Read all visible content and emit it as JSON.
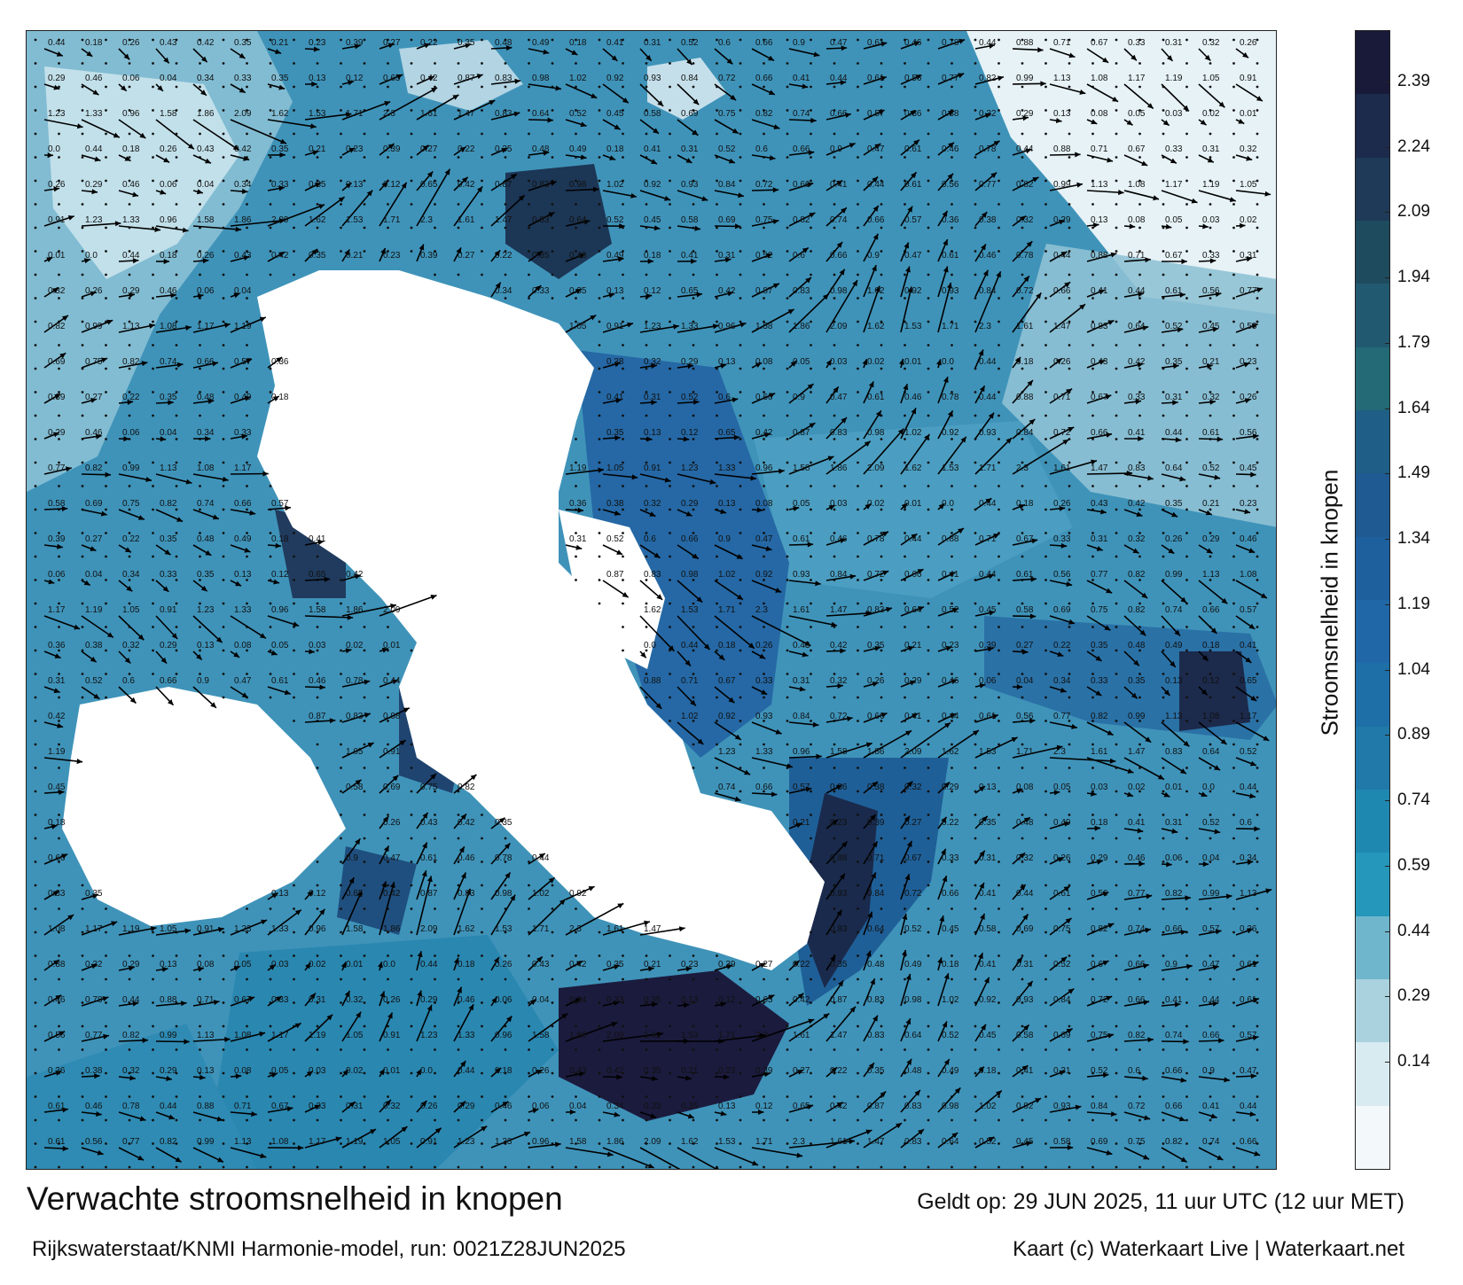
{
  "map": {
    "title": "Verwachte stroomsnelheid in knopen",
    "subtitle": "Rijkswaterstaat/KNMI Harmonie-model, run: 0021Z28JUN2025",
    "valid_time": "Geldt op: 29 JUN 2025, 11 uur UTC (12 uur MET)",
    "credit": "Kaart (c) Waterkaart Live | Waterkaart.net",
    "land_color": "#ffffff",
    "arrow_color": "#000000"
  },
  "colorbar": {
    "label": "Stroomsnelheid in knopen",
    "ticks": [
      "2.39",
      "2.24",
      "2.09",
      "1.94",
      "1.79",
      "1.64",
      "1.49",
      "1.34",
      "1.19",
      "1.04",
      "0.89",
      "0.74",
      "0.59",
      "0.44",
      "0.29",
      "0.14"
    ],
    "colors": [
      "#191a3a",
      "#1c2a4c",
      "#1e3a58",
      "#1f4b5e",
      "#215a70",
      "#236a76",
      "#1f5e86",
      "#1f5a92",
      "#1e609e",
      "#2067a8",
      "#1e6fa8",
      "#2079a8",
      "#1f88b0",
      "#2497ba",
      "#6fb6cc",
      "#a9d2de",
      "#d8ebf1",
      "#f3f9fb"
    ]
  },
  "current_samples": [
    {
      "v": "0.44"
    },
    {
      "v": "0.18"
    },
    {
      "v": "0.26"
    },
    {
      "v": "0.43"
    },
    {
      "v": "0.42"
    },
    {
      "v": "0.35"
    },
    {
      "v": "0.21"
    },
    {
      "v": "0.23"
    },
    {
      "v": "0.39"
    },
    {
      "v": "0.27"
    },
    {
      "v": "0.22"
    },
    {
      "v": "0.35"
    },
    {
      "v": "0.48"
    },
    {
      "v": "0.49"
    },
    {
      "v": "0.18"
    },
    {
      "v": "0.41"
    },
    {
      "v": "0.31"
    },
    {
      "v": "0.52"
    },
    {
      "v": "0.6"
    },
    {
      "v": "0.66"
    },
    {
      "v": "0.9"
    },
    {
      "v": "0.47"
    },
    {
      "v": "0.61"
    },
    {
      "v": "0.46"
    },
    {
      "v": "0.78"
    },
    {
      "v": "0.44"
    },
    {
      "v": "0.88"
    },
    {
      "v": "0.71"
    },
    {
      "v": "0.67"
    },
    {
      "v": "0.33"
    },
    {
      "v": "0.31"
    },
    {
      "v": "0.32"
    },
    {
      "v": "0.26"
    },
    {
      "v": "0.29"
    },
    {
      "v": "0.46"
    },
    {
      "v": "0.06"
    },
    {
      "v": "0.04"
    },
    {
      "v": "0.34"
    },
    {
      "v": "0.33"
    },
    {
      "v": "0.35"
    },
    {
      "v": "0.13"
    },
    {
      "v": "0.12"
    },
    {
      "v": "0.65"
    },
    {
      "v": "0.42"
    },
    {
      "v": "0.87"
    },
    {
      "v": "0.83"
    },
    {
      "v": "0.98"
    },
    {
      "v": "1.02"
    },
    {
      "v": "0.92"
    },
    {
      "v": "0.93"
    },
    {
      "v": "0.84"
    },
    {
      "v": "0.72"
    },
    {
      "v": "0.66"
    },
    {
      "v": "0.41"
    },
    {
      "v": "0.44"
    },
    {
      "v": "0.61"
    },
    {
      "v": "0.56"
    },
    {
      "v": "0.77"
    },
    {
      "v": "0.82"
    },
    {
      "v": "0.99"
    },
    {
      "v": "1.13"
    },
    {
      "v": "1.08"
    },
    {
      "v": "1.17"
    },
    {
      "v": "1.19"
    },
    {
      "v": "1.05"
    },
    {
      "v": "0.91"
    },
    {
      "v": "1.23"
    },
    {
      "v": "1.33"
    },
    {
      "v": "0.96"
    },
    {
      "v": "1.58"
    },
    {
      "v": "1.86"
    },
    {
      "v": "2.09"
    },
    {
      "v": "1.62"
    },
    {
      "v": "1.53"
    },
    {
      "v": "1.71"
    },
    {
      "v": "2.3"
    },
    {
      "v": "1.61"
    },
    {
      "v": "1.47"
    },
    {
      "v": "0.83"
    },
    {
      "v": "0.64"
    },
    {
      "v": "0.52"
    },
    {
      "v": "0.45"
    },
    {
      "v": "0.58"
    },
    {
      "v": "0.69"
    },
    {
      "v": "0.75"
    },
    {
      "v": "0.82"
    },
    {
      "v": "0.74"
    },
    {
      "v": "0.66"
    },
    {
      "v": "0.57"
    },
    {
      "v": "0.36"
    },
    {
      "v": "0.38"
    },
    {
      "v": "0.32"
    },
    {
      "v": "0.29"
    },
    {
      "v": "0.13"
    },
    {
      "v": "0.08"
    },
    {
      "v": "0.05"
    },
    {
      "v": "0.03"
    },
    {
      "v": "0.02"
    },
    {
      "v": "0.01"
    },
    {
      "v": "0.0"
    }
  ]
}
